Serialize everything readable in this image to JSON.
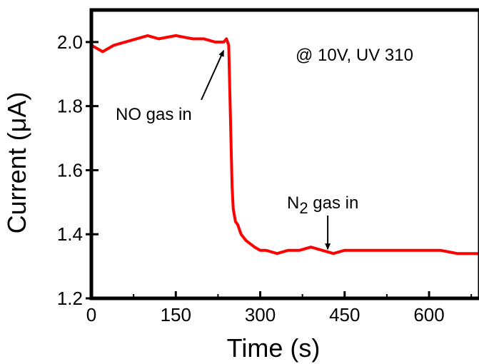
{
  "chart_data": {
    "type": "line",
    "xlabel": "Time (s)",
    "ylabel": "Current (μA)",
    "xlim": [
      0,
      690
    ],
    "ylim": [
      1.2,
      2.1
    ],
    "xticks": [
      "0",
      "150",
      "300",
      "450",
      "600"
    ],
    "yticks": [
      "1.2",
      "1.4",
      "1.6",
      "1.8",
      "2.0"
    ],
    "grid": false,
    "series": [
      {
        "color": "#ff0000",
        "x": [
          0,
          10,
          20,
          40,
          60,
          80,
          100,
          120,
          150,
          180,
          200,
          220,
          235,
          240,
          244,
          246,
          248,
          250,
          252,
          256,
          260,
          266,
          275,
          290,
          300,
          310,
          330,
          350,
          370,
          390,
          410,
          430,
          450,
          470,
          500,
          530,
          560,
          590,
          620,
          650,
          670,
          690
        ],
        "y": [
          1.99,
          1.98,
          1.97,
          1.99,
          2.0,
          2.01,
          2.02,
          2.01,
          2.02,
          2.01,
          2.01,
          2.0,
          2.0,
          2.01,
          1.99,
          1.85,
          1.7,
          1.55,
          1.48,
          1.44,
          1.43,
          1.4,
          1.38,
          1.36,
          1.35,
          1.35,
          1.34,
          1.35,
          1.35,
          1.36,
          1.35,
          1.34,
          1.35,
          1.35,
          1.35,
          1.35,
          1.35,
          1.35,
          1.35,
          1.34,
          1.34,
          1.34
        ]
      }
    ],
    "annotations": [
      {
        "text": "@ 10V, UV 310"
      },
      {
        "text": "NO gas in",
        "arrow_to": {
          "x": 240,
          "y": 2.0
        }
      },
      {
        "text": "N",
        "sub": "2",
        "text_after": " gas in",
        "arrow_to": {
          "x": 420,
          "y": 1.34
        }
      }
    ]
  }
}
